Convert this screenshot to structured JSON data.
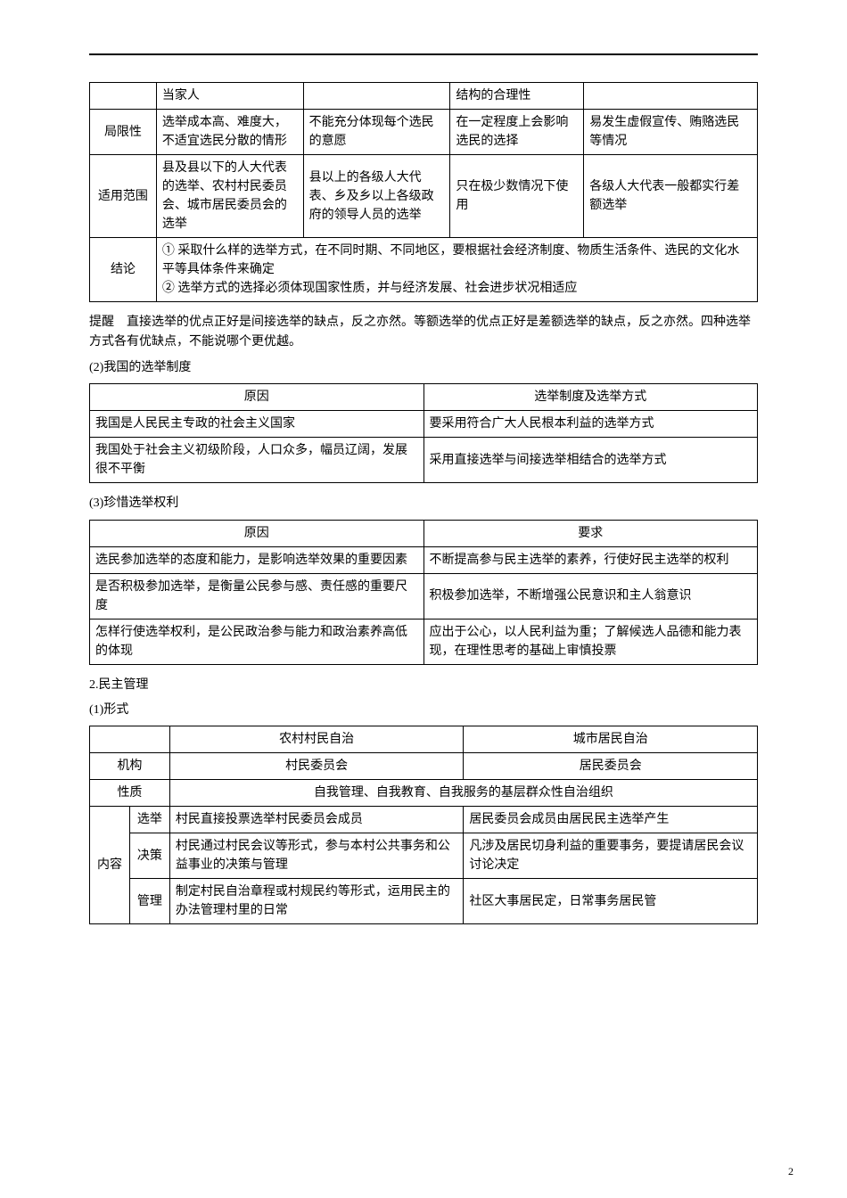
{
  "table1": {
    "r0": {
      "c1": "当家人",
      "c3": "结构的合理性"
    },
    "r1": {
      "c0": "局限性",
      "c1": "选举成本高、难度大，不适宜选民分散的情形",
      "c2": "不能充分体现每个选民的意愿",
      "c3": "在一定程度上会影响选民的选择",
      "c4": "易发生虚假宣传、贿赂选民等情况"
    },
    "r2": {
      "c0": "适用范围",
      "c1": "县及县以下的人大代表的选举、农村村民委员会、城市居民委员会的选举",
      "c2": "县以上的各级人大代表、乡及乡以上各级政府的领导人员的选举",
      "c3": "只在极少数情况下使用",
      "c4": "各级人大代表一般都实行差额选举"
    },
    "r3": {
      "c0": "结论",
      "c1": "① 采取什么样的选举方式，在不同时期、不同地区，要根据社会经济制度、物质生活条件、选民的文化水平等具体条件来确定\n② 选举方式的选择必须体现国家性质，并与经济发展、社会进步状况相适应"
    }
  },
  "para1": "提醒　直接选举的优点正好是间接选举的缺点，反之亦然。等额选举的优点正好是差额选举的缺点，反之亦然。四种选举方式各有优缺点，不能说哪个更优越。",
  "heading2": "(2)我国的选举制度",
  "table2": {
    "h0": "原因",
    "h1": "选举制度及选举方式",
    "r0": {
      "c0": "我国是人民民主专政的社会主义国家",
      "c1": "要采用符合广大人民根本利益的选举方式"
    },
    "r1": {
      "c0": "我国处于社会主义初级阶段，人口众多，幅员辽阔，发展很不平衡",
      "c1": "采用直接选举与间接选举相结合的选举方式"
    }
  },
  "heading3": "(3)珍惜选举权利",
  "table3": {
    "h0": "原因",
    "h1": "要求",
    "r0": {
      "c0": "选民参加选举的态度和能力，是影响选举效果的重要因素",
      "c1": "不断提高参与民主选举的素养，行使好民主选举的权利"
    },
    "r1": {
      "c0": "是否积极参加选举，是衡量公民参与感、责任感的重要尺度",
      "c1": "积极参加选举，不断增强公民意识和主人翁意识"
    },
    "r2": {
      "c0": "怎样行使选举权利，是公民政治参与能力和政治素养高低的体现",
      "c1": "应出于公心，以人民利益为重；了解候选人品德和能力表现，在理性思考的基础上审慎投票"
    }
  },
  "heading4a": "2.民主管理",
  "heading4b": "(1)形式",
  "table4": {
    "h2": "农村村民自治",
    "h3": "城市居民自治",
    "r_org": {
      "label": "机构",
      "c2": "村民委员会",
      "c3": "居民委员会"
    },
    "r_nat": {
      "label": "性质",
      "c": "自我管理、自我教育、自我服务的基层群众性自治组织"
    },
    "content_label": "内容",
    "r_elect": {
      "label": "选举",
      "c2": "村民直接投票选举村民委员会成员",
      "c3": "居民委员会成员由居民民主选举产生"
    },
    "r_decide": {
      "label": "决策",
      "c2": "村民通过村民会议等形式，参与本村公共事务和公益事业的决策与管理",
      "c3": "凡涉及居民切身利益的重要事务，要提请居民会议讨论决定"
    },
    "r_manage": {
      "label": "管理",
      "c2": "制定村民自治章程或村规民约等形式，运用民主的办法管理村里的日常",
      "c3": "社区大事居民定，日常事务居民管"
    }
  },
  "page_num": "2"
}
